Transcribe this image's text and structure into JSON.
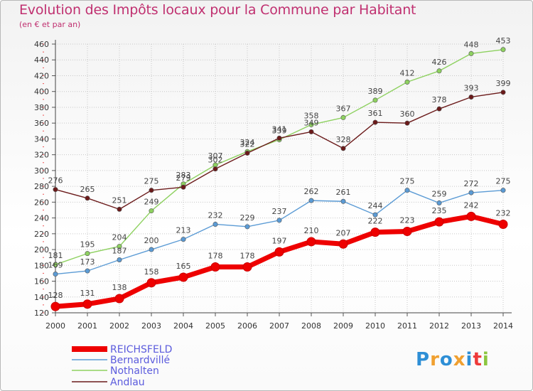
{
  "title": "Evolution des Impôts locaux pour la Commune par Habitant",
  "subtitle": "(en € et par an)",
  "logo": {
    "text": "Proxiti",
    "colors": [
      "#2e8fd6",
      "#f0a030",
      "#2e8fd6",
      "#f0a030",
      "#2e8fd6",
      "#ee3a3a",
      "#8cc63f"
    ]
  },
  "chart_data": {
    "type": "line",
    "x": [
      "2000",
      "2001",
      "2002",
      "2003",
      "2004",
      "2005",
      "2006",
      "2007",
      "2008",
      "2009",
      "2010",
      "2011",
      "2012",
      "2013",
      "2014"
    ],
    "ylim": [
      120,
      460
    ],
    "yticks": [
      120,
      140,
      160,
      180,
      200,
      220,
      240,
      260,
      280,
      300,
      320,
      340,
      360,
      380,
      400,
      420,
      440,
      460
    ],
    "grid": true,
    "legend_position": "bottom-left",
    "series": [
      {
        "name": "REICHSFELD",
        "color": "#ee0000",
        "values": [
          128,
          131,
          138,
          158,
          165,
          178,
          178,
          197,
          210,
          207,
          222,
          223,
          235,
          242,
          232
        ]
      },
      {
        "name": "Bernardvillé",
        "color": "#5b9bd5",
        "values": [
          169,
          173,
          187,
          200,
          213,
          232,
          229,
          237,
          262,
          261,
          244,
          275,
          259,
          272,
          275
        ]
      },
      {
        "name": "Nothalten",
        "color": "#8ed160",
        "values": [
          181,
          195,
          204,
          249,
          283,
          307,
          324,
          339,
          358,
          367,
          389,
          412,
          426,
          448,
          453
        ]
      },
      {
        "name": "Andlau",
        "color": "#6b1a1a",
        "values": [
          276,
          265,
          251,
          275,
          279,
          302,
          322,
          341,
          349,
          328,
          361,
          360,
          378,
          393,
          399
        ]
      }
    ]
  }
}
